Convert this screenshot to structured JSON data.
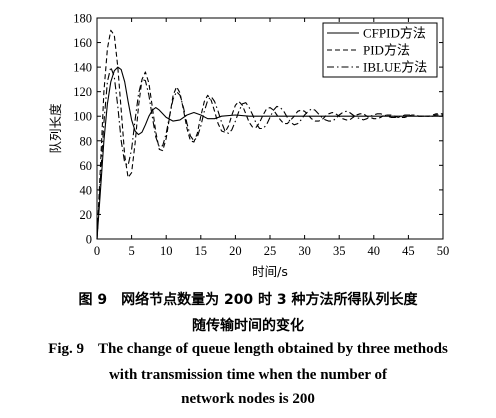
{
  "chart_data": {
    "type": "line",
    "xlabel": "时间/s",
    "ylabel": "队列长度",
    "xlim": [
      0,
      50
    ],
    "ylim": [
      0,
      180
    ],
    "xticks": [
      0,
      5,
      10,
      15,
      20,
      25,
      30,
      35,
      40,
      45,
      50
    ],
    "yticks": [
      0,
      20,
      40,
      60,
      80,
      100,
      120,
      140,
      160,
      180
    ],
    "grid": false,
    "legend_position": "top-right",
    "series": [
      {
        "name": "CFPID方法",
        "style": "solid",
        "x": [
          0,
          0.5,
          1,
          1.5,
          2,
          2.5,
          3,
          3.5,
          4,
          4.5,
          5,
          5.5,
          6,
          6.5,
          7,
          7.5,
          8,
          8.5,
          9,
          10,
          11,
          12,
          13,
          14,
          15,
          16,
          17,
          18,
          20,
          22,
          25,
          30,
          35,
          40,
          45,
          50
        ],
        "y": [
          0,
          40,
          80,
          110,
          128,
          137,
          140,
          138,
          128,
          112,
          97,
          88,
          85,
          87,
          93,
          100,
          105,
          107,
          105,
          99,
          96,
          97,
          101,
          103,
          101,
          98,
          98,
          100,
          101,
          100,
          100,
          100,
          100,
          100,
          100,
          100
        ]
      },
      {
        "name": "PID方法",
        "style": "dashed",
        "x": [
          0,
          0.5,
          1,
          1.5,
          2,
          2.5,
          3,
          3.5,
          4,
          4.5,
          5,
          5.5,
          6,
          6.5,
          7,
          7.5,
          8,
          8.5,
          9,
          9.5,
          10,
          10.5,
          11,
          11.5,
          12,
          12.5,
          13,
          13.5,
          14,
          14.5,
          15,
          15.5,
          16,
          16.5,
          17,
          17.5,
          18,
          18.5,
          19,
          19.5,
          20,
          20.5,
          21,
          21.5,
          22,
          22.5,
          23,
          23.5,
          24,
          24.5,
          25,
          25.5,
          26,
          26.5,
          27,
          27.5,
          28,
          28.5,
          29,
          29.5,
          30,
          30.5,
          31,
          31.5,
          32,
          32.5,
          33,
          33.5,
          34,
          34.5,
          35,
          35.5,
          36,
          36.5,
          37,
          37.5,
          38,
          38.5,
          39,
          39.5,
          40,
          40.5,
          41,
          41.5,
          42,
          42.5,
          43,
          43.5,
          44,
          44.5,
          45,
          45.5,
          46,
          46.5,
          47,
          47.5,
          48,
          48.5,
          49,
          49.5,
          50
        ],
        "y": [
          0,
          60,
          120,
          155,
          170,
          166,
          140,
          105,
          68,
          50,
          54,
          78,
          108,
          130,
          136,
          127,
          107,
          87,
          73,
          72,
          82,
          100,
          117,
          124,
          119,
          105,
          90,
          80,
          79,
          86,
          100,
          112,
          117,
          113,
          104,
          94,
          88,
          87,
          92,
          101,
          109,
          112,
          109,
          102,
          95,
          91,
          91,
          95,
          101,
          106,
          107,
          105,
          101,
          97,
          94,
          94,
          97,
          100,
          104,
          105,
          104,
          101,
          98,
          96,
          96,
          97,
          100,
          102,
          103,
          102,
          100,
          98,
          97,
          97,
          99,
          101,
          102,
          102,
          100,
          99,
          98,
          98,
          99,
          101,
          101,
          101,
          100,
          99,
          99,
          99,
          100,
          101,
          101,
          100,
          100,
          100,
          100,
          101,
          102,
          102,
          102
        ]
      },
      {
        "name": "IBLUE方法",
        "style": "dashdot",
        "x": [
          0,
          0.5,
          1,
          1.5,
          2,
          2.5,
          3,
          3.5,
          4,
          4.5,
          5,
          5.5,
          6,
          6.5,
          7,
          7.5,
          8,
          8.5,
          9,
          9.5,
          10,
          10.5,
          11,
          11.5,
          12,
          12.5,
          13,
          13.5,
          14,
          14.5,
          15,
          15.5,
          16,
          16.5,
          17,
          17.5,
          18,
          18.5,
          19,
          19.5,
          20,
          20.5,
          21,
          21.5,
          22,
          22.5,
          23,
          23.5,
          24,
          24.5,
          25,
          25.5,
          26,
          26.5,
          27,
          27.5,
          28,
          28.5,
          29,
          29.5,
          30,
          30.5,
          31,
          31.5,
          32,
          32.5,
          33,
          33.5,
          34,
          34.5,
          35,
          35.5,
          36,
          36.5,
          37,
          37.5,
          38,
          38.5,
          39,
          39.5,
          40,
          40.5,
          41,
          41.5,
          42,
          42.5,
          43,
          43.5,
          44,
          44.5,
          45,
          45.5,
          46,
          46.5,
          47,
          47.5,
          48,
          48.5,
          49,
          49.5,
          50
        ],
        "y": [
          0,
          50,
          95,
          128,
          140,
          132,
          108,
          80,
          62,
          60,
          73,
          97,
          118,
          130,
          129,
          117,
          99,
          83,
          75,
          76,
          86,
          101,
          114,
          120,
          117,
          107,
          94,
          84,
          80,
          83,
          92,
          104,
          113,
          116,
          112,
          104,
          95,
          88,
          86,
          89,
          96,
          104,
          110,
          111,
          107,
          101,
          94,
          90,
          90,
          93,
          99,
          105,
          108,
          107,
          104,
          99,
          95,
          93,
          94,
          97,
          101,
          104,
          106,
          105,
          102,
          99,
          97,
          96,
          96,
          98,
          101,
          103,
          104,
          103,
          101,
          99,
          98,
          97,
          98,
          100,
          101,
          102,
          102,
          101,
          100,
          99,
          99,
          99,
          100,
          101,
          101,
          101,
          101,
          100,
          100,
          100,
          100,
          100,
          101,
          101,
          101
        ]
      }
    ]
  },
  "caption": {
    "cn_fig_no": "图 9",
    "cn_line1": "网络节点数量为 200 时 3 种方法所得队列长度",
    "cn_line2": "随传输时间的变化",
    "en_fig_no": "Fig. 9",
    "en_line1": "The change of queue length obtained by three methods",
    "en_line2": "with transmission time when the number of",
    "en_line3": "network nodes is 200"
  }
}
